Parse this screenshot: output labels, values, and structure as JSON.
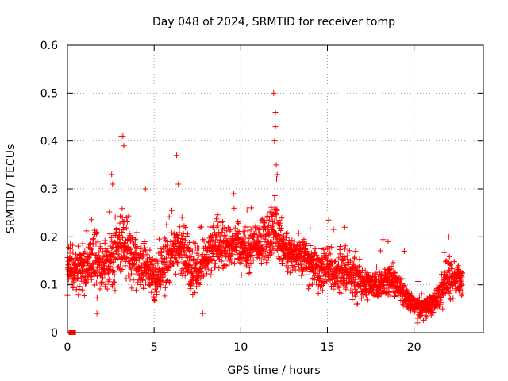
{
  "chart_data": {
    "type": "scatter",
    "title": "Day 048 of 2024, SRMTID for receiver tomp",
    "xlabel": "GPS time / hours",
    "ylabel": "SRMTID / TECUs",
    "xlim": [
      0,
      24
    ],
    "ylim": [
      0,
      0.6
    ],
    "x_ticks": [
      0,
      5,
      10,
      15,
      20
    ],
    "y_ticks": [
      0,
      0.1,
      0.2,
      0.3,
      0.4,
      0.5,
      0.6
    ],
    "x_tick_labels": [
      "0",
      "5",
      "10",
      "15",
      "20"
    ],
    "y_tick_labels": [
      "0",
      "0.1",
      "0.2",
      "0.3",
      "0.4",
      "0.5",
      "0.6"
    ],
    "grid": true,
    "series_color": "#ff0000",
    "marker": "plus",
    "envelope": {
      "x": [
        0.0,
        0.5,
        1.0,
        1.5,
        2.0,
        2.5,
        3.0,
        3.5,
        4.0,
        4.5,
        5.0,
        5.5,
        6.0,
        6.5,
        7.0,
        7.5,
        8.0,
        8.5,
        9.0,
        9.5,
        10.0,
        10.5,
        11.0,
        11.5,
        12.0,
        12.5,
        13.0,
        13.5,
        14.0,
        14.5,
        15.0,
        15.5,
        16.0,
        16.5,
        17.0,
        17.5,
        18.0,
        18.5,
        19.0,
        19.5,
        20.0,
        20.5,
        21.0,
        21.5,
        22.0,
        22.5,
        22.8
      ],
      "mid": [
        0.14,
        0.13,
        0.14,
        0.15,
        0.14,
        0.15,
        0.19,
        0.17,
        0.15,
        0.14,
        0.11,
        0.14,
        0.16,
        0.18,
        0.14,
        0.13,
        0.16,
        0.18,
        0.17,
        0.18,
        0.18,
        0.17,
        0.18,
        0.2,
        0.22,
        0.17,
        0.16,
        0.17,
        0.14,
        0.13,
        0.14,
        0.12,
        0.13,
        0.11,
        0.1,
        0.1,
        0.1,
        0.11,
        0.1,
        0.07,
        0.06,
        0.05,
        0.06,
        0.08,
        0.12,
        0.11,
        0.1
      ],
      "spread": [
        0.04,
        0.04,
        0.05,
        0.05,
        0.05,
        0.05,
        0.07,
        0.06,
        0.06,
        0.05,
        0.04,
        0.05,
        0.05,
        0.05,
        0.05,
        0.05,
        0.04,
        0.04,
        0.05,
        0.04,
        0.04,
        0.04,
        0.04,
        0.05,
        0.06,
        0.04,
        0.04,
        0.04,
        0.04,
        0.04,
        0.04,
        0.03,
        0.04,
        0.04,
        0.03,
        0.03,
        0.03,
        0.03,
        0.03,
        0.02,
        0.02,
        0.02,
        0.02,
        0.03,
        0.04,
        0.03,
        0.03
      ]
    },
    "notable_points": [
      {
        "x": 3.1,
        "y": 0.41
      },
      {
        "x": 3.2,
        "y": 0.41
      },
      {
        "x": 3.25,
        "y": 0.39
      },
      {
        "x": 2.55,
        "y": 0.33
      },
      {
        "x": 2.6,
        "y": 0.31
      },
      {
        "x": 4.5,
        "y": 0.3
      },
      {
        "x": 6.3,
        "y": 0.37
      },
      {
        "x": 6.4,
        "y": 0.31
      },
      {
        "x": 9.6,
        "y": 0.29
      },
      {
        "x": 11.9,
        "y": 0.5
      },
      {
        "x": 12.0,
        "y": 0.46
      },
      {
        "x": 12.0,
        "y": 0.43
      },
      {
        "x": 11.95,
        "y": 0.4
      },
      {
        "x": 12.1,
        "y": 0.33
      },
      {
        "x": 12.05,
        "y": 0.35
      },
      {
        "x": 16.0,
        "y": 0.22
      },
      {
        "x": 22.0,
        "y": 0.2
      },
      {
        "x": 18.5,
        "y": 0.19
      },
      {
        "x": 1.7,
        "y": 0.04
      },
      {
        "x": 7.8,
        "y": 0.04
      },
      {
        "x": 20.2,
        "y": 0.02
      }
    ],
    "zero_markers": [
      {
        "x": 0.2,
        "y": 0
      },
      {
        "x": 0.35,
        "y": 0
      }
    ]
  }
}
